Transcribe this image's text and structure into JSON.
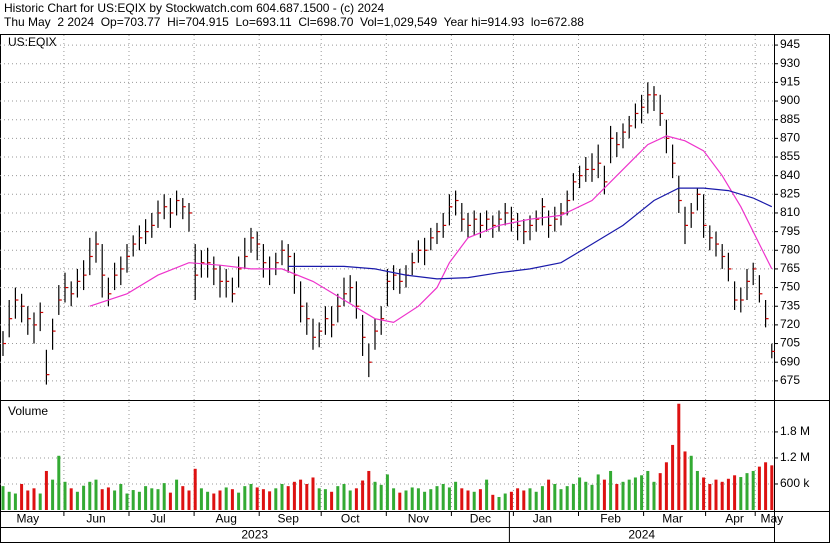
{
  "header": {
    "line1": "Historic Chart for US:EQIX by Stockwatch.com 604.687.1500 - (c) 2024",
    "line2": "Thu May  2 2024  Op=703.77  Hi=704.915  Lo=693.11  Cl=698.70  Vol=1,029,549  Year hi=914.93  lo=672.88"
  },
  "chart_data": {
    "type": "ohlc",
    "symbol": "US:EQIX",
    "categories": [
      null,
      null,
      null,
      null,
      "May",
      null,
      null,
      null,
      null,
      null,
      null,
      null,
      null,
      null,
      null,
      "Jun",
      null,
      null,
      null,
      null,
      null,
      null,
      null,
      null,
      null,
      "Jul",
      null,
      null,
      null,
      null,
      null,
      null,
      null,
      null,
      null,
      null,
      "Aug",
      null,
      null,
      null,
      null,
      null,
      null,
      null,
      null,
      null,
      "Sep",
      null,
      null,
      null,
      null,
      null,
      null,
      null,
      null,
      null,
      "Oct",
      null,
      null,
      null,
      null,
      null,
      null,
      null,
      null,
      null,
      null,
      "Nov",
      null,
      null,
      null,
      null,
      null,
      null,
      null,
      null,
      null,
      "Dec",
      null,
      null,
      null,
      null,
      null,
      null,
      null,
      null,
      null,
      "Jan",
      null,
      null,
      null,
      null,
      null,
      null,
      null,
      null,
      null,
      null,
      "Feb",
      null,
      null,
      null,
      null,
      null,
      null,
      null,
      null,
      null,
      "Mar",
      null,
      null,
      null,
      null,
      null,
      null,
      null,
      null,
      null,
      "Apr",
      null,
      null,
      null,
      null,
      null,
      "May"
    ],
    "year_labels": [
      "2023",
      "2024"
    ],
    "high": [
      715,
      740,
      750,
      745,
      735,
      730,
      738,
      700,
      725,
      752,
      762,
      755,
      765,
      772,
      790,
      795,
      785,
      758,
      770,
      775,
      785,
      792,
      800,
      805,
      810,
      820,
      825,
      822,
      828,
      822,
      818,
      785,
      780,
      782,
      775,
      768,
      765,
      758,
      775,
      790,
      798,
      795,
      785,
      775,
      778,
      788,
      785,
      778,
      755,
      738,
      725,
      722,
      735,
      735,
      745,
      758,
      760,
      755,
      728,
      705,
      725,
      735,
      765,
      768,
      765,
      768,
      778,
      788,
      790,
      798,
      802,
      810,
      825,
      828,
      818,
      810,
      812,
      810,
      812,
      808,
      812,
      818,
      815,
      810,
      805,
      808,
      812,
      822,
      812,
      815,
      818,
      828,
      842,
      848,
      855,
      858,
      865,
      848,
      880,
      875,
      882,
      888,
      898,
      905,
      915,
      912,
      905,
      885,
      865,
      840,
      815,
      818,
      830,
      825,
      800,
      795,
      785,
      778,
      755,
      750,
      765,
      770,
      760,
      740,
      704.915
    ],
    "low": [
      695,
      710,
      725,
      722,
      712,
      705,
      715,
      672,
      700,
      728,
      738,
      735,
      742,
      748,
      760,
      770,
      742,
      735,
      748,
      752,
      762,
      775,
      780,
      785,
      790,
      798,
      805,
      798,
      808,
      805,
      795,
      740,
      758,
      758,
      752,
      742,
      742,
      738,
      750,
      765,
      778,
      772,
      758,
      752,
      760,
      768,
      762,
      745,
      722,
      712,
      700,
      702,
      712,
      710,
      722,
      735,
      738,
      725,
      695,
      678,
      700,
      712,
      735,
      748,
      745,
      750,
      760,
      770,
      768,
      780,
      785,
      790,
      800,
      808,
      795,
      790,
      792,
      790,
      795,
      790,
      795,
      800,
      795,
      788,
      785,
      788,
      795,
      800,
      790,
      795,
      800,
      808,
      820,
      830,
      835,
      835,
      838,
      825,
      850,
      855,
      862,
      870,
      878,
      882,
      890,
      892,
      880,
      858,
      838,
      810,
      785,
      798,
      812,
      790,
      780,
      775,
      765,
      755,
      732,
      730,
      740,
      752,
      738,
      718,
      693.11
    ],
    "close": [
      705,
      725,
      740,
      735,
      725,
      720,
      730,
      680,
      715,
      740,
      750,
      745,
      755,
      760,
      775,
      785,
      760,
      745,
      760,
      765,
      775,
      785,
      790,
      795,
      800,
      810,
      815,
      810,
      820,
      815,
      810,
      760,
      770,
      770,
      765,
      755,
      755,
      745,
      765,
      775,
      790,
      785,
      770,
      765,
      770,
      780,
      775,
      760,
      735,
      725,
      710,
      715,
      725,
      720,
      735,
      745,
      750,
      735,
      710,
      690,
      715,
      725,
      755,
      760,
      755,
      760,
      770,
      780,
      780,
      790,
      795,
      800,
      815,
      820,
      805,
      800,
      805,
      800,
      805,
      800,
      805,
      810,
      805,
      800,
      795,
      800,
      805,
      815,
      800,
      805,
      810,
      820,
      835,
      840,
      845,
      845,
      850,
      835,
      870,
      865,
      875,
      880,
      890,
      895,
      905,
      905,
      890,
      870,
      850,
      820,
      800,
      810,
      825,
      800,
      790,
      785,
      775,
      765,
      740,
      740,
      755,
      765,
      745,
      725,
      698.7
    ],
    "bar_color": "#000000",
    "close_color": "#cc0000",
    "ylim": [
      659.6,
      953.1
    ],
    "yticks": [
      675,
      690,
      705,
      720,
      735,
      750,
      765,
      780,
      795,
      810,
      825,
      840,
      855,
      870,
      885,
      900,
      915,
      930,
      945
    ],
    "grid": true,
    "moving_averages": [
      {
        "color": "#ee33cc",
        "x": [
          14,
          20,
          25,
          30,
          35,
          40,
          45,
          50,
          55,
          60,
          63,
          67,
          70,
          72,
          75,
          80,
          85,
          90,
          95,
          100,
          104,
          107,
          110,
          113,
          116,
          119,
          122,
          124
        ],
        "values": [
          735,
          745,
          760,
          770,
          768,
          765,
          765,
          755,
          740,
          725,
          722,
          735,
          750,
          770,
          790,
          800,
          805,
          808,
          820,
          845,
          865,
          872,
          868,
          860,
          840,
          815,
          785,
          765
        ]
      },
      {
        "color": "#1a1aaa",
        "x": [
          46,
          50,
          55,
          60,
          65,
          70,
          75,
          80,
          85,
          90,
          95,
          100,
          105,
          109,
          113,
          117,
          121,
          124
        ],
        "values": [
          767,
          767,
          767,
          765,
          760,
          757,
          758,
          762,
          765,
          770,
          785,
          800,
          820,
          830,
          830,
          828,
          822,
          815
        ]
      }
    ],
    "volume": {
      "title": "Volume",
      "up_color": "#33aa33",
      "down_color": "#dd1111",
      "values": [
        550000,
        420000,
        380000,
        600000,
        450000,
        500000,
        380000,
        900000,
        700000,
        1250000,
        650000,
        500000,
        420000,
        560000,
        650000,
        700000,
        480000,
        520000,
        450000,
        600000,
        380000,
        460000,
        420000,
        550000,
        500000,
        480000,
        620000,
        400000,
        700000,
        550000,
        450000,
        950000,
        500000,
        420000,
        380000,
        450000,
        520000,
        480000,
        400000,
        550000,
        600000,
        520000,
        480000,
        430000,
        500000,
        600000,
        550000,
        650000,
        700000,
        600000,
        750000,
        500000,
        480000,
        420000,
        550000,
        600000,
        450000,
        500000,
        680000,
        900000,
        650000,
        580000,
        820000,
        500000,
        400000,
        450000,
        520000,
        500000,
        420000,
        480000,
        550000,
        600000,
        520000,
        650000,
        500000,
        450000,
        420000,
        480000,
        700000,
        350000,
        300000,
        380000,
        420000,
        500000,
        450000,
        500000,
        420000,
        550000,
        700000,
        600000,
        480000,
        550000,
        600000,
        750000,
        650000,
        580000,
        820000,
        700000,
        900000,
        600000,
        650000,
        700000,
        750000,
        800000,
        900000,
        650000,
        850000,
        1100000,
        1500000,
        2450000,
        1350000,
        1250000,
        900000,
        750000,
        600000,
        700000,
        650000,
        720000,
        800000,
        760000,
        850000,
        900000,
        1000000,
        1100000,
        1029549
      ],
      "ylim": [
        0,
        2490000
      ],
      "yticks": [
        {
          "value": 600000,
          "label": "600 k"
        },
        {
          "value": 1200000,
          "label": "1.2 M"
        },
        {
          "value": 1800000,
          "label": "1.8 M"
        }
      ]
    }
  }
}
